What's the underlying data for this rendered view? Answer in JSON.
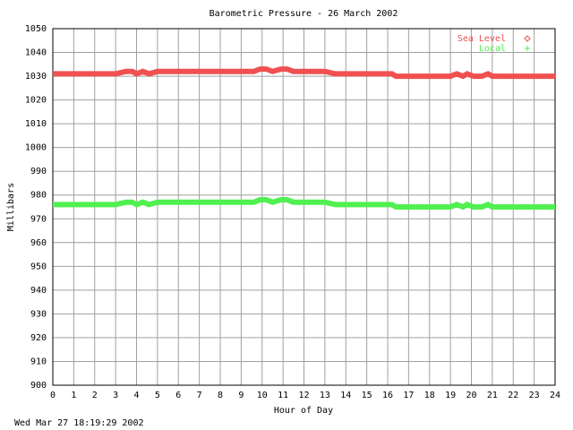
{
  "chart_data": {
    "type": "line",
    "title": "Barometric Pressure - 26 March 2002",
    "x_label": "Hour of Day",
    "y_label": "Millibars",
    "footer": "Wed Mar 27 18:19:29 2002",
    "x": [
      0,
      1,
      2,
      3,
      3.5,
      3.8,
      4,
      4.3,
      4.6,
      5,
      6,
      7,
      8,
      9,
      9.6,
      9.9,
      10.2,
      10.5,
      10.9,
      11.2,
      11.5,
      12,
      13,
      13.5,
      14,
      15,
      16.2,
      16.4,
      17,
      18,
      19,
      19.3,
      19.6,
      19.8,
      20.1,
      20.5,
      20.8,
      21,
      22,
      23,
      24
    ],
    "series": [
      {
        "name": "Sea Level",
        "color": "#f05050",
        "marker": "diamond",
        "values": [
          1031,
          1031,
          1031,
          1031,
          1032,
          1032,
          1031,
          1032,
          1031,
          1032,
          1032,
          1032,
          1032,
          1032,
          1032,
          1033,
          1033,
          1032,
          1033,
          1033,
          1032,
          1032,
          1032,
          1031,
          1031,
          1031,
          1031,
          1030,
          1030,
          1030,
          1030,
          1031,
          1030,
          1031,
          1030,
          1030,
          1031,
          1030,
          1030,
          1030,
          1030
        ]
      },
      {
        "name": "Local",
        "color": "#50f050",
        "marker": "plus",
        "values": [
          976,
          976,
          976,
          976,
          977,
          977,
          976,
          977,
          976,
          977,
          977,
          977,
          977,
          977,
          977,
          978,
          978,
          977,
          978,
          978,
          977,
          977,
          977,
          976,
          976,
          976,
          976,
          975,
          975,
          975,
          975,
          976,
          975,
          976,
          975,
          975,
          976,
          975,
          975,
          975,
          975
        ]
      }
    ],
    "xlim": [
      0,
      24
    ],
    "xticks": [
      0,
      1,
      2,
      3,
      4,
      5,
      6,
      7,
      8,
      9,
      10,
      11,
      12,
      13,
      14,
      15,
      16,
      17,
      18,
      19,
      20,
      21,
      22,
      23,
      24
    ],
    "ylim": [
      900,
      1050
    ],
    "yticks": [
      900,
      910,
      920,
      930,
      940,
      950,
      960,
      970,
      980,
      990,
      1000,
      1010,
      1020,
      1030,
      1040,
      1050
    ],
    "grid": true,
    "legend": "top-right"
  }
}
